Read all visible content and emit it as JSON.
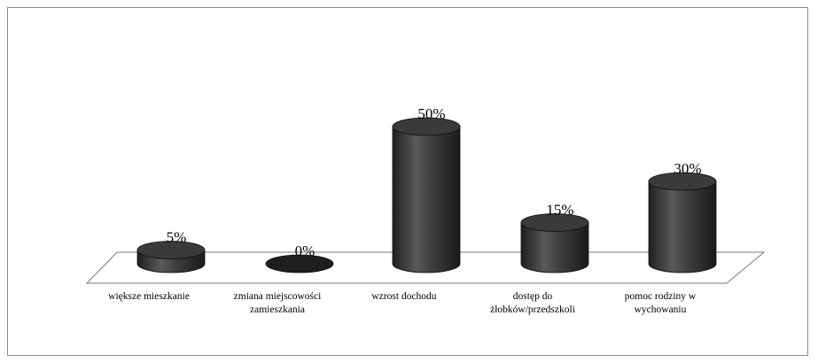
{
  "chart_data": {
    "type": "bar",
    "style": "3d-cylinder",
    "categories": [
      [
        "większe mieszkanie"
      ],
      [
        "zmiana miejscowości",
        "zamieszkania"
      ],
      [
        "wzrost dochodu"
      ],
      [
        "dostęp do",
        "żłobków/przedszkoli"
      ],
      [
        "pomoc rodziny w",
        "wychowaniu"
      ]
    ],
    "values": [
      5,
      0,
      50,
      15,
      30
    ],
    "value_labels": [
      "5%",
      "0%",
      "50%",
      "15%",
      "30%"
    ],
    "ylim": [
      0,
      50
    ],
    "grid": false,
    "legend": "none",
    "colors": {
      "bar": "#3a3a3a",
      "bar_light": "#5a5a5a",
      "bar_dark": "#1e1e1e",
      "floor": "#ffffff",
      "frame": "#8c8c8c"
    }
  }
}
